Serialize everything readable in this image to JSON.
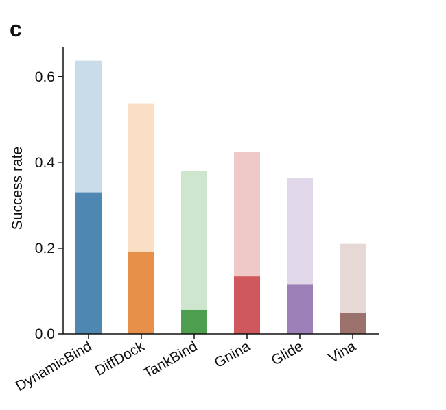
{
  "panel_label": "c",
  "chart_data": {
    "type": "bar",
    "title": "",
    "xlabel": "",
    "ylabel": "Success rate",
    "ylim": [
      0,
      0.67
    ],
    "yticks": [
      "0.0",
      "0.2",
      "0.4",
      "0.6"
    ],
    "ytick_values": [
      0.0,
      0.2,
      0.4,
      0.6
    ],
    "categories": [
      "DynamicBind",
      "DiffDock",
      "TankBind",
      "Gnina",
      "Glide",
      "Vina"
    ],
    "series": [
      {
        "values": [
          0.637,
          0.538,
          0.379,
          0.424,
          0.364,
          0.21
        ]
      },
      {
        "values": [
          0.33,
          0.192,
          0.056,
          0.134,
          0.116,
          0.049
        ]
      }
    ],
    "colors_light": [
      "#c9dcea",
      "#fbdfc4",
      "#cde6cd",
      "#efc9c8",
      "#e0d8e8",
      "#e6d8d4"
    ],
    "colors_dark": [
      "#4e88b2",
      "#e69049",
      "#4e9e4f",
      "#cf585c",
      "#9e80b8",
      "#9a726b"
    ],
    "grid": false,
    "legend": "none"
  }
}
